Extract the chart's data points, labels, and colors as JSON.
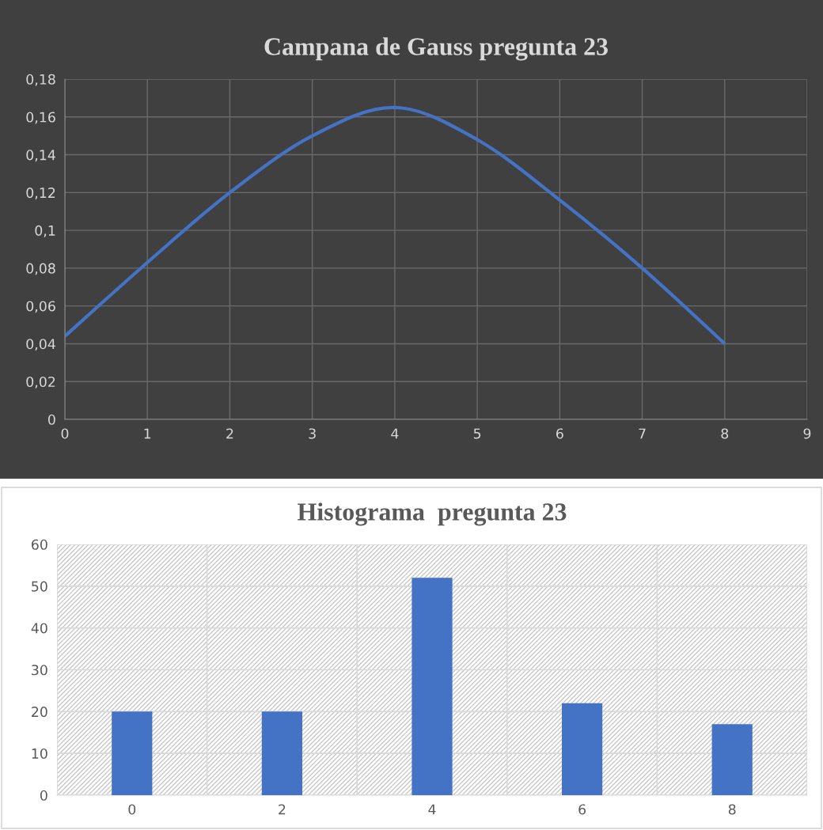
{
  "chart_data": [
    {
      "type": "line",
      "title": "Campana de Gauss pregunta 23",
      "x": [
        0,
        1,
        2,
        3,
        4,
        5,
        6,
        7,
        8
      ],
      "series": [
        {
          "color": "#4472c4",
          "values": [
            0.044,
            0.083,
            0.12,
            0.15,
            0.165,
            0.148,
            0.116,
            0.08,
            0.04
          ]
        }
      ],
      "xlim": [
        0,
        9
      ],
      "xticks": [
        0,
        1,
        2,
        3,
        4,
        5,
        6,
        7,
        8,
        9
      ],
      "ylim": [
        0,
        0.18
      ],
      "yticks": [
        0,
        {
          "value": 0.02,
          "label": "0,02"
        },
        {
          "value": 0.04,
          "label": "0,04"
        },
        {
          "value": 0.06,
          "label": "0,06"
        },
        {
          "value": 0.08,
          "label": "0,08"
        },
        {
          "value": 0.1,
          "label": "0,1"
        },
        {
          "value": 0.12,
          "label": "0,12"
        },
        {
          "value": 0.14,
          "label": "0,14"
        },
        {
          "value": 0.16,
          "label": "0,16"
        },
        {
          "value": 0.18,
          "label": "0,18"
        }
      ],
      "grid": true,
      "marker": "none",
      "line_style": "solid"
    },
    {
      "type": "bar",
      "title": "Histograma  pregunta 23",
      "categories": [
        "0",
        "2",
        "4",
        "6",
        "8"
      ],
      "series": [
        {
          "color": "#4472c4",
          "values": [
            20,
            20,
            52,
            22,
            17
          ]
        }
      ],
      "ylim": [
        0,
        60
      ],
      "yticks": [
        0,
        10,
        20,
        30,
        40,
        50,
        60
      ],
      "grid": true
    }
  ]
}
